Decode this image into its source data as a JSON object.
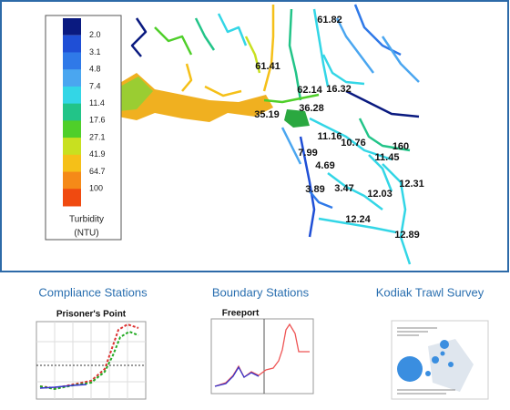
{
  "legend": {
    "title": "Turbidity",
    "unit": "(NTU)",
    "levels": [
      {
        "label": "2.0",
        "color": "#1a2fa8"
      },
      {
        "label": "3.1",
        "color": "#1f4fd6"
      },
      {
        "label": "4.8",
        "color": "#2f79e8"
      },
      {
        "label": "7.4",
        "color": "#4aa6f0"
      },
      {
        "label": "11.4",
        "color": "#33d6e6"
      },
      {
        "label": "17.6",
        "color": "#22c488"
      },
      {
        "label": "27.1",
        "color": "#4fcf2a"
      },
      {
        "label": "41.9",
        "color": "#c8e020"
      },
      {
        "label": "64.7",
        "color": "#f5c018"
      },
      {
        "label": "100",
        "color": "#f58a18"
      }
    ],
    "top_color": "#0a1a80",
    "bottom_color": "#f04a10"
  },
  "stations": [
    "61.82",
    "61.41",
    "62.14",
    "16.32",
    "36.28",
    "35.19",
    "11.16",
    "10.76",
    "160",
    "11.45",
    "7.99",
    "4.69",
    "3.89",
    "3.47",
    "12.31",
    "12.03",
    "12.24",
    "12.89"
  ],
  "panels": [
    {
      "caption": "Compliance Stations",
      "chart_title": "Prisoner's Point"
    },
    {
      "caption": "Boundary Stations",
      "chart_title": "Freeport"
    },
    {
      "caption": "Kodiak Trawl Survey"
    }
  ]
}
